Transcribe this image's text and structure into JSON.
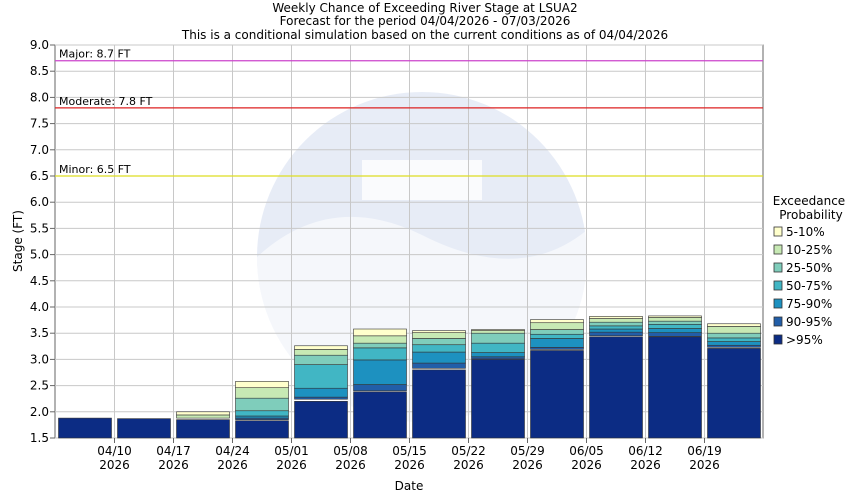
{
  "chart_data": {
    "type": "bar",
    "title": "Weekly Chance of Exceeding River Stage at LSUA2",
    "subtitle_lines": [
      "Forecast for the period 04/04/2026 - 07/03/2026",
      "This is a conditional simulation based on the current conditions as of 04/04/2026"
    ],
    "xlabel": "Date",
    "ylabel": "Stage (FT)",
    "ylim": [
      1.5,
      9.0
    ],
    "yticks": [
      "1.5",
      "2.0",
      "2.5",
      "3.0",
      "3.5",
      "4.0",
      "4.5",
      "5.0",
      "5.5",
      "6.0",
      "6.5",
      "7.0",
      "7.5",
      "8.0",
      "8.5",
      "9.0"
    ],
    "xticks": [
      {
        "top": "04/10",
        "bottom": "2026"
      },
      {
        "top": "04/17",
        "bottom": "2026"
      },
      {
        "top": "04/24",
        "bottom": "2026"
      },
      {
        "top": "05/01",
        "bottom": "2026"
      },
      {
        "top": "05/08",
        "bottom": "2026"
      },
      {
        "top": "05/15",
        "bottom": "2026"
      },
      {
        "top": "05/22",
        "bottom": "2026"
      },
      {
        "top": "05/29",
        "bottom": "2026"
      },
      {
        "top": "06/05",
        "bottom": "2026"
      },
      {
        "top": "06/12",
        "bottom": "2026"
      },
      {
        "top": "06/19",
        "bottom": "2026"
      }
    ],
    "grid": true,
    "thresholds": [
      {
        "label": "Major: 8.7 FT",
        "value": 8.7,
        "color": "#cc44cc"
      },
      {
        "label": "Moderate: 7.8 FT",
        "value": 7.8,
        "color": "#dd2222"
      },
      {
        "label": "Minor: 6.5 FT",
        "value": 6.5,
        "color": "#dddd22"
      }
    ],
    "legend": {
      "title_lines": [
        "Exceedance",
        "Probability"
      ],
      "placement": "right",
      "entries": [
        {
          "label": "5-10%",
          "color": "#ffffcc"
        },
        {
          "label": "10-25%",
          "color": "#c7e9b4"
        },
        {
          "label": "25-50%",
          "color": "#7fcdbb"
        },
        {
          "label": "50-75%",
          "color": "#41b6c4"
        },
        {
          "label": "75-90%",
          "color": "#1d91c0"
        },
        {
          "label": "90-95%",
          "color": "#225ea8"
        },
        {
          "label": ">95%",
          "color": "#0c2c84"
        }
      ]
    },
    "weeks": [
      {
        "stack": [
          1.88,
          1.88,
          1.88,
          1.88,
          1.88,
          1.88,
          1.88,
          1.88
        ]
      },
      {
        "stack": [
          1.87,
          1.87,
          1.87,
          1.87,
          1.87,
          1.87,
          1.87,
          1.87
        ]
      },
      {
        "stack": [
          1.85,
          1.88,
          1.88,
          1.88,
          1.88,
          1.88,
          1.94,
          2.0
        ]
      },
      {
        "stack": [
          1.83,
          1.85,
          1.88,
          1.92,
          2.02,
          2.26,
          2.46,
          2.58
        ]
      },
      {
        "stack": [
          2.2,
          2.24,
          2.28,
          2.45,
          2.9,
          3.08,
          3.19,
          3.26
        ]
      },
      {
        "stack": [
          2.38,
          2.4,
          2.52,
          2.99,
          3.22,
          3.31,
          3.45,
          3.58
        ]
      },
      {
        "stack": [
          2.8,
          2.83,
          2.93,
          3.14,
          3.28,
          3.4,
          3.51,
          3.55
        ]
      },
      {
        "stack": [
          3.0,
          3.01,
          3.05,
          3.13,
          3.31,
          3.5,
          3.55,
          3.57
        ]
      },
      {
        "stack": [
          3.17,
          3.19,
          3.23,
          3.4,
          3.48,
          3.57,
          3.7,
          3.76
        ]
      },
      {
        "stack": [
          3.43,
          3.45,
          3.52,
          3.58,
          3.64,
          3.71,
          3.78,
          3.82
        ]
      },
      {
        "stack": [
          3.43,
          3.44,
          3.51,
          3.59,
          3.67,
          3.73,
          3.8,
          3.83
        ]
      },
      {
        "stack": [
          3.21,
          3.23,
          3.27,
          3.34,
          3.41,
          3.5,
          3.63,
          3.68
        ]
      }
    ]
  }
}
